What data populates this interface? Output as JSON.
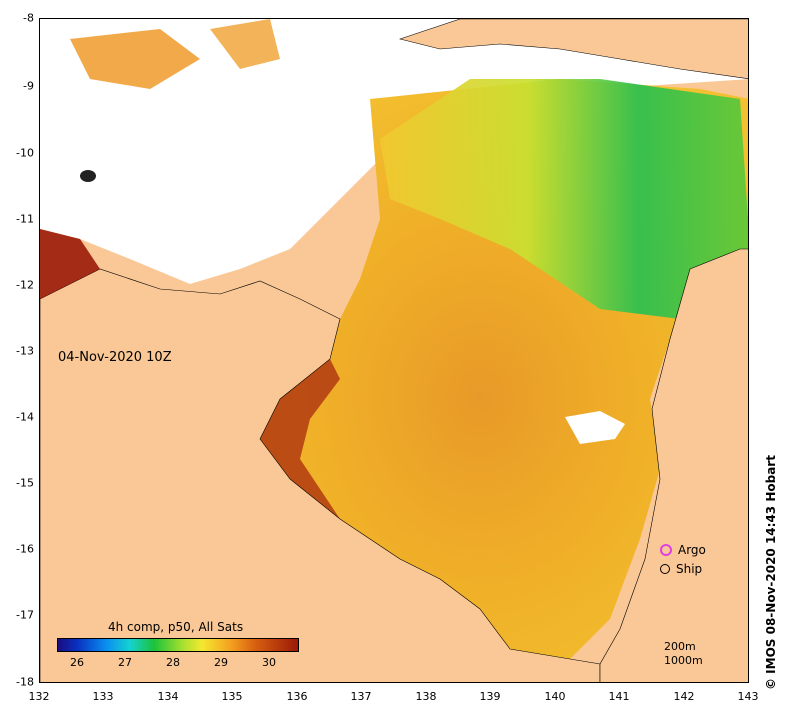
{
  "map": {
    "timestamp": "04-Nov-2020 10Z",
    "x_ticks": [
      "132",
      "133",
      "134",
      "135",
      "136",
      "137",
      "138",
      "139",
      "140",
      "141",
      "142",
      "143"
    ],
    "y_ticks": [
      "-8",
      "-9",
      "-10",
      "-11",
      "-12",
      "-13",
      "-14",
      "-15",
      "-16",
      "-17",
      "-18"
    ],
    "legend": [
      {
        "label": "Argo",
        "color": "#e040e0"
      },
      {
        "label": "Ship",
        "color": "#000000"
      }
    ],
    "credit": "© IMOS 08-Nov-2020 14:43 Hobart",
    "colorbar": {
      "title": "4h comp, p50, All Sats",
      "ticks": [
        "26",
        "27",
        "28",
        "29",
        "30"
      ]
    },
    "depth_labels": [
      "200m",
      "1000m"
    ],
    "colors": {
      "land": "#fac896",
      "no_data": "#ffffff"
    }
  }
}
